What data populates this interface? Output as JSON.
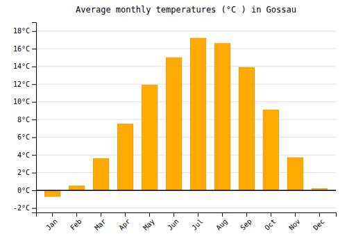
{
  "chart_data": {
    "type": "bar",
    "title": "Average monthly temperatures (°C ) in Gossau",
    "categories": [
      "Jan",
      "Feb",
      "Mar",
      "Apr",
      "May",
      "Jun",
      "Jul",
      "Aug",
      "Sep",
      "Oct",
      "Nov",
      "Dec"
    ],
    "values": [
      -0.7,
      0.5,
      3.6,
      7.5,
      11.9,
      15.0,
      17.2,
      16.6,
      13.9,
      9.1,
      3.7,
      0.2
    ],
    "color": "#FFAA00",
    "ylim": [
      -2.5,
      19
    ],
    "yticks": [
      {
        "value": -2,
        "label": "-2°C"
      },
      {
        "value": 0,
        "label": "0°C"
      },
      {
        "value": 2,
        "label": "2°C"
      },
      {
        "value": 4,
        "label": "4°C"
      },
      {
        "value": 6,
        "label": "6°C"
      },
      {
        "value": 8,
        "label": "8°C"
      },
      {
        "value": 10,
        "label": "10°C"
      },
      {
        "value": 12,
        "label": "12°C"
      },
      {
        "value": 14,
        "label": "14°C"
      },
      {
        "value": 16,
        "label": "16°C"
      },
      {
        "value": 18,
        "label": "18°C"
      }
    ],
    "grid": true
  }
}
